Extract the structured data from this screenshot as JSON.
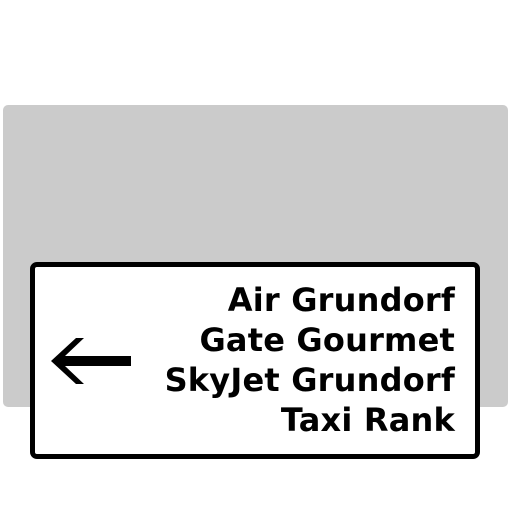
{
  "sign": {
    "background_color": "#cbcbcb",
    "panel_color": "#ffffff",
    "ink_color": "#000000",
    "arrow": {
      "icon": "arrow-left-icon",
      "direction": "left"
    },
    "destinations": [
      "Air Grundorf",
      "Gate Gourmet",
      "SkyJet Grundorf",
      "Taxi Rank"
    ]
  }
}
